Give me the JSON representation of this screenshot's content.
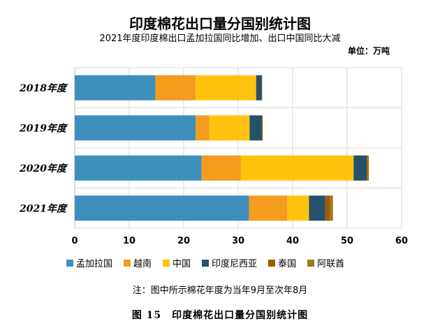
{
  "header": {
    "title": "印度棉花出口量分国别统计图",
    "subtitle": "2021年度印度棉出口孟加拉国同比增加、出口中国同比大减",
    "unit": "单位：万吨"
  },
  "note": "注：图中所示棉花年度为当年9月至次年8月",
  "caption": "图 15　印度棉花出口量分国别统计图",
  "colors": {
    "孟加拉国": "#3f8fbd",
    "越南": "#f39c1e",
    "中国": "#ffc20e",
    "印度尼西亚": "#26506b",
    "泰国": "#9e5a00",
    "阿联酋": "#9c7c0f"
  },
  "chart_data": {
    "type": "bar",
    "orientation": "horizontal",
    "stacked": true,
    "categories": [
      "2018年度",
      "2019年度",
      "2020年度",
      "2021年度"
    ],
    "series": [
      {
        "name": "孟加拉国",
        "values": [
          14.8,
          22.2,
          23.3,
          32.0
        ]
      },
      {
        "name": "越南",
        "values": [
          7.4,
          2.5,
          7.2,
          7.0
        ]
      },
      {
        "name": "中国",
        "values": [
          11.1,
          7.4,
          20.7,
          4.0
        ]
      },
      {
        "name": "印度尼西亚",
        "values": [
          1.0,
          2.2,
          2.4,
          3.0
        ]
      },
      {
        "name": "泰国",
        "values": [
          0.1,
          0.2,
          0.2,
          0.8
        ]
      },
      {
        "name": "阿联酋",
        "values": [
          0.0,
          0.0,
          0.2,
          0.6
        ]
      }
    ],
    "xlim": [
      0,
      60
    ],
    "xticks": [
      "0",
      "10",
      "20",
      "30",
      "40",
      "50",
      "60"
    ],
    "grid": true,
    "legend_position": "bottom"
  }
}
